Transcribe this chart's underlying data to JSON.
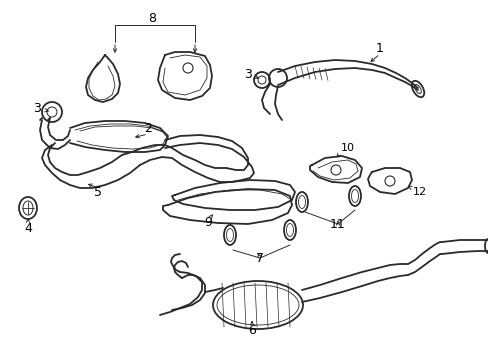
{
  "bg_color": "#ffffff",
  "line_color": "#2a2a2a",
  "label_color": "#000000",
  "fig_width": 4.89,
  "fig_height": 3.6,
  "dpi": 100,
  "lw": 1.0,
  "lw_thin": 0.6,
  "lw_thick": 1.3
}
